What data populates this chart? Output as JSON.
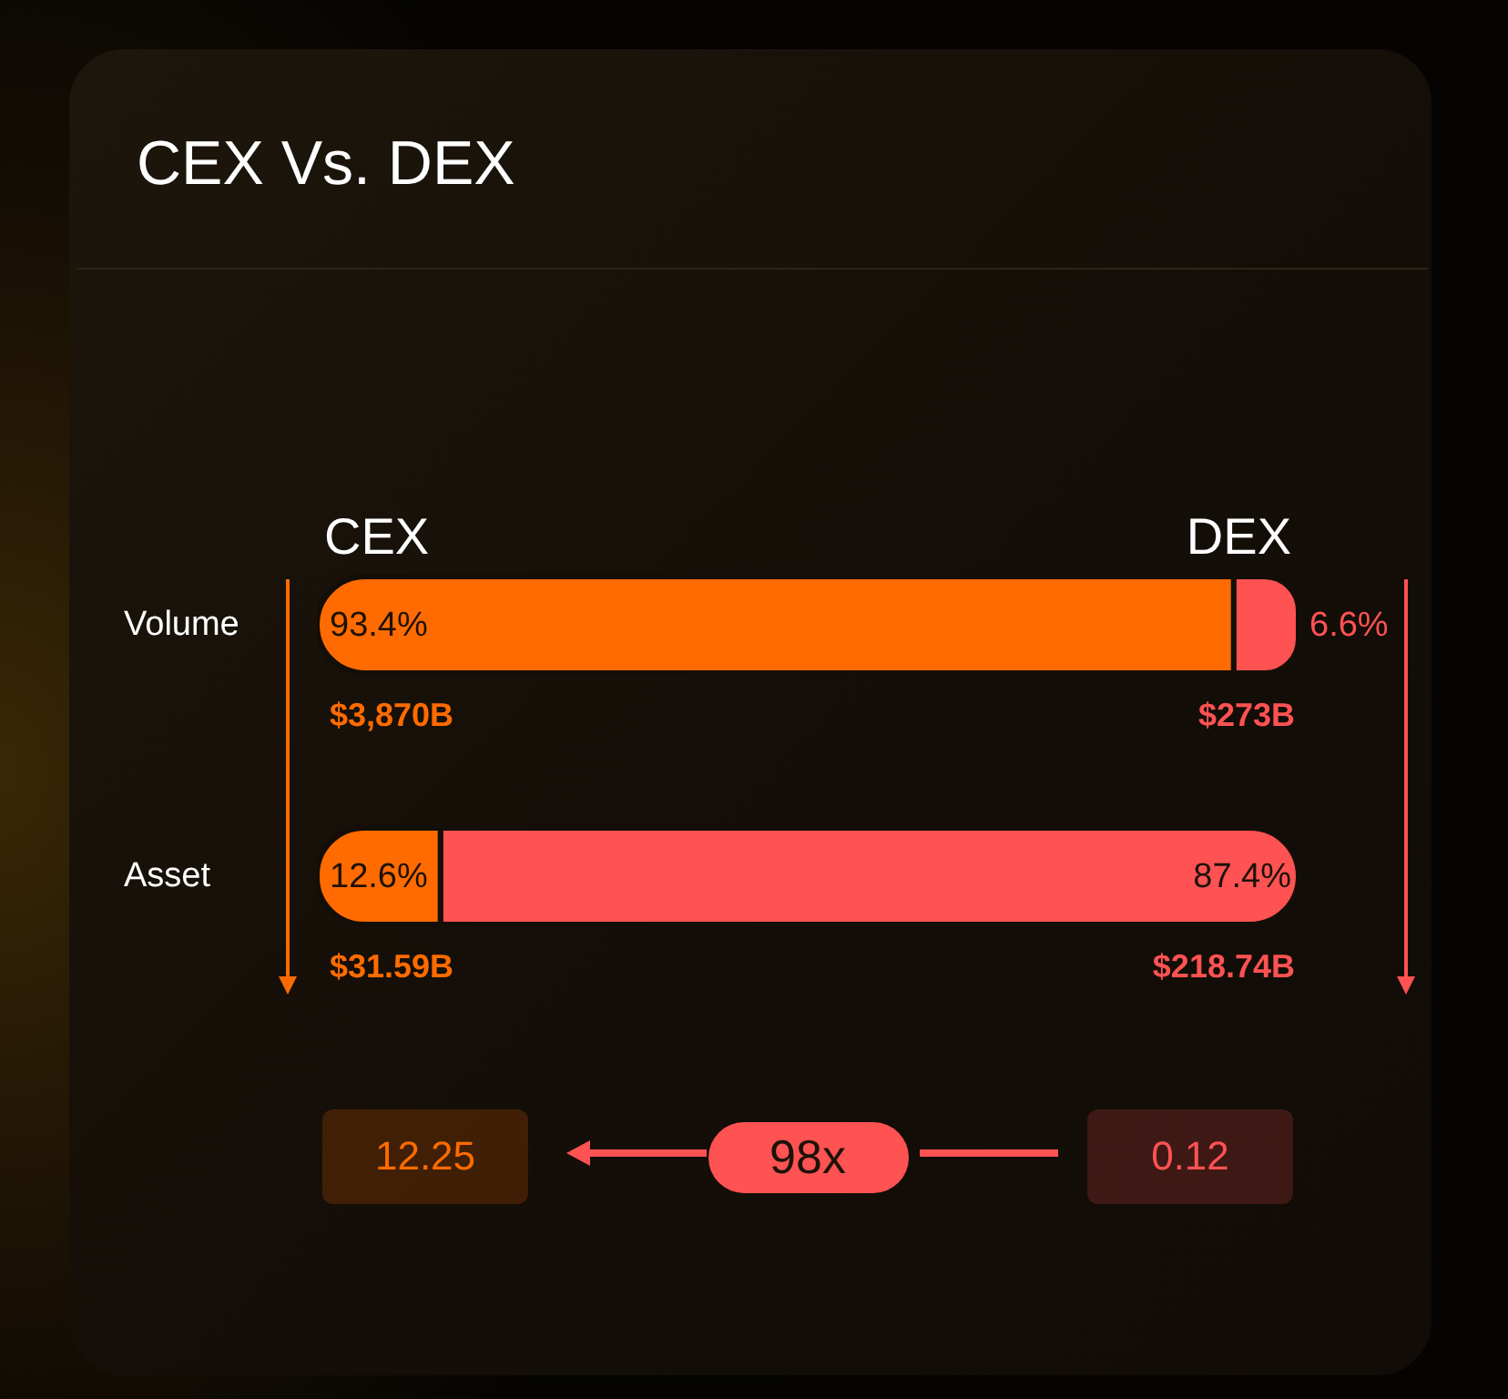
{
  "chart_data": {
    "type": "bar",
    "title": "CEX Vs. DEX",
    "orientation": "horizontal",
    "stacked": true,
    "categories": [
      "Volume",
      "Asset"
    ],
    "series": [
      {
        "name": "CEX",
        "color": "#ff6b00",
        "values": [
          93.4,
          12.6
        ],
        "value_labels": [
          "93.4%",
          "12.6%"
        ]
      },
      {
        "name": "DEX",
        "color": "#ff5252",
        "values": [
          6.6,
          87.4
        ],
        "value_labels": [
          "6.6%",
          "87.4%"
        ]
      }
    ],
    "xlim": [
      0,
      100
    ],
    "legend": "top",
    "tick_labels": "y",
    "annotations": [
      "$3,870B",
      "$273B",
      "$31.59B",
      "$218.74B",
      "12.25",
      "98x",
      "0.12"
    ]
  }
}
